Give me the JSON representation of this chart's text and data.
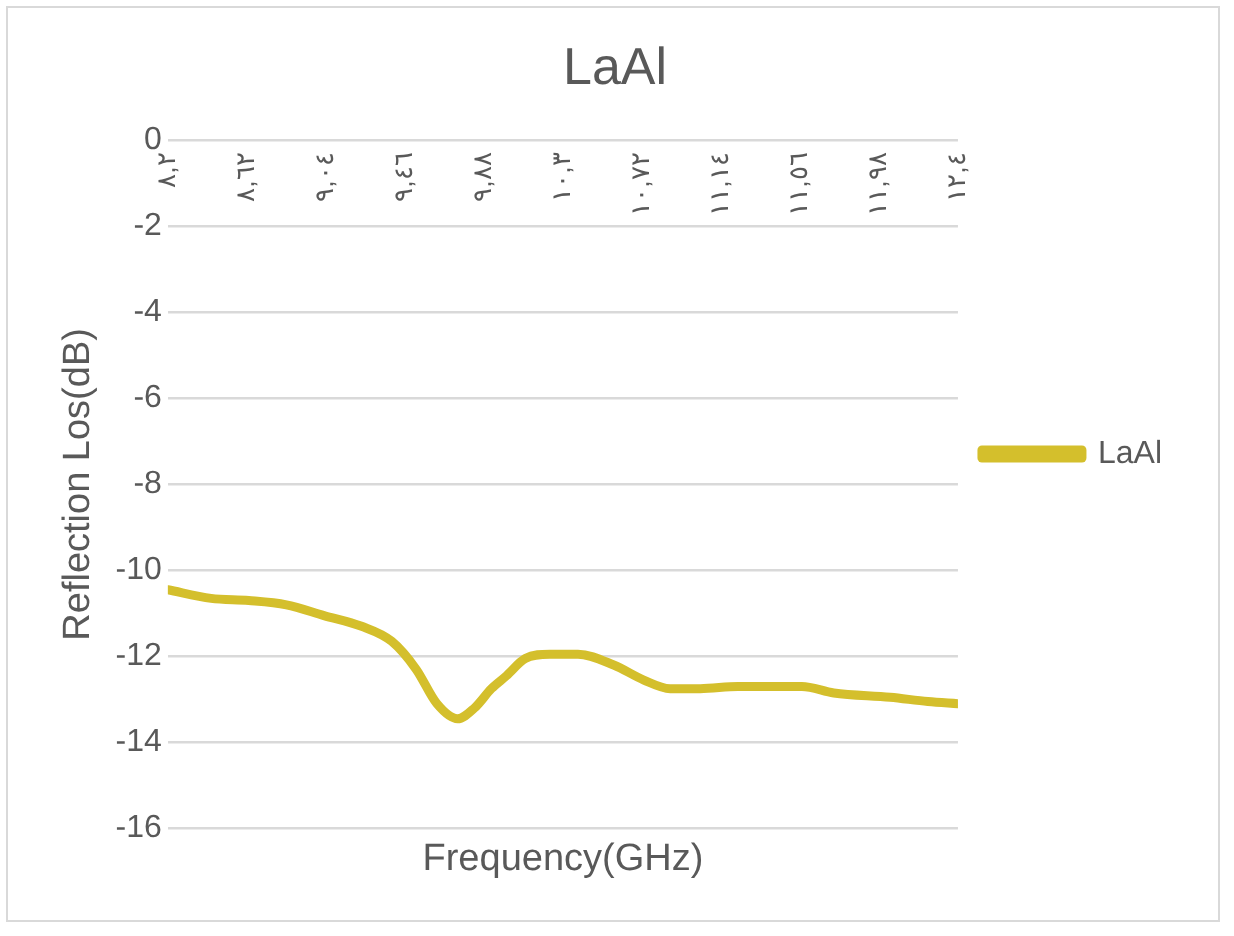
{
  "chart_data": {
    "type": "line",
    "title": "LaAl",
    "xlabel": "Frequency(GHz)",
    "ylabel": "Reflection Los(dB)",
    "xlim": [
      8.2,
      12.4
    ],
    "xticks": [
      {
        "value": 8.2,
        "label": "٨,٢"
      },
      {
        "value": 8.62,
        "label": "٨,٦٢"
      },
      {
        "value": 9.04,
        "label": "٩,٠٤"
      },
      {
        "value": 9.46,
        "label": "٩,٤٦"
      },
      {
        "value": 9.88,
        "label": "٩,٨٨"
      },
      {
        "value": 10.3,
        "label": "١٠,٣"
      },
      {
        "value": 10.72,
        "label": "١٠,٧٢"
      },
      {
        "value": 11.14,
        "label": "١١,١٤"
      },
      {
        "value": 11.56,
        "label": "١١,٥٦"
      },
      {
        "value": 11.98,
        "label": "١١,٩٨"
      },
      {
        "value": 12.4,
        "label": "١٢,٤"
      }
    ],
    "ylim": [
      -16,
      0
    ],
    "yticks": [
      -16,
      -14,
      -12,
      -10,
      -8,
      -6,
      -4,
      -2,
      0
    ],
    "grid": "y",
    "legend": "right",
    "marker": "none",
    "x": [
      8.2,
      8.43,
      8.63,
      8.83,
      9.03,
      9.23,
      9.39,
      9.52,
      9.63,
      9.74,
      9.83,
      9.92,
      10.0,
      10.1,
      10.23,
      10.38,
      10.57,
      10.73,
      10.87,
      11.03,
      11.23,
      11.57,
      11.74,
      12.04,
      12.24,
      12.4
    ],
    "series": [
      {
        "name": "LaAl",
        "color": "#d4bf2c",
        "values": [
          -10.45,
          -10.65,
          -10.7,
          -10.8,
          -11.05,
          -11.3,
          -11.65,
          -12.3,
          -13.1,
          -13.45,
          -13.2,
          -12.75,
          -12.45,
          -12.05,
          -11.95,
          -11.95,
          -12.2,
          -12.55,
          -12.75,
          -12.75,
          -12.7,
          -12.7,
          -12.85,
          -12.95,
          -13.05,
          -13.1
        ]
      }
    ]
  }
}
